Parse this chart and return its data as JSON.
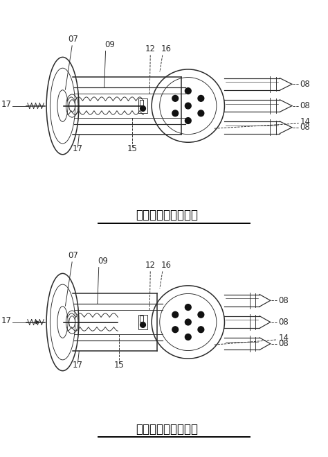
{
  "fig_width": 4.74,
  "fig_height": 6.59,
  "dpi": 100,
  "bg_color": "#ffffff",
  "line_color": "#2a2a2a",
  "title1": "充电枪剖面图（伸）",
  "title2": "充电枪剖面图（缩）",
  "title_fontsize": 12,
  "label_fontsize": 8.5
}
